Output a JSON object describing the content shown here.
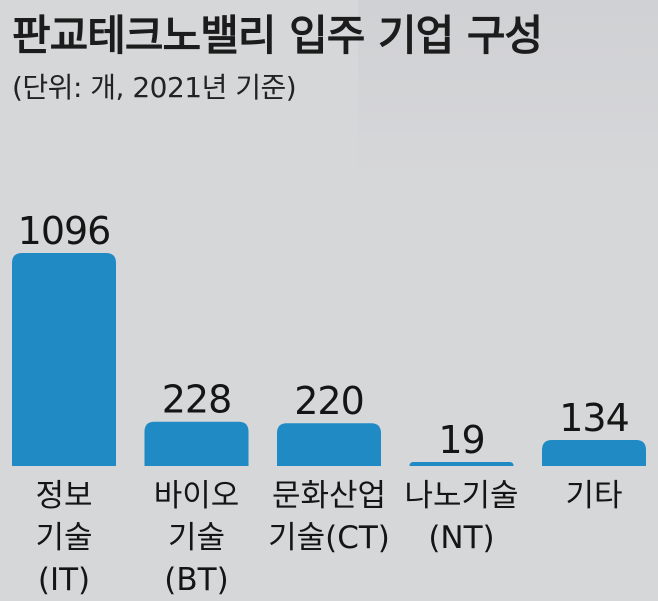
{
  "header": {
    "title": "판교테크노밸리 입주 기업 구성",
    "subtitle": "(단위: 개, 2021년 기준)"
  },
  "colors": {
    "bar": "#1f8ac4",
    "background": "#d6d7d9",
    "text": "#151515"
  },
  "chart_data": {
    "type": "bar",
    "title": "판교테크노밸리 입주 기업 구성",
    "subtitle": "(단위: 개, 2021년 기준)",
    "categories": [
      "정보 기술 (IT)",
      "바이오 기술 (BT)",
      "문화산업 기술(CT)",
      "나노기술 (NT)",
      "기타"
    ],
    "category_lines": [
      [
        "정보",
        "기술",
        "(IT)"
      ],
      [
        "바이오",
        "기술",
        "(BT)"
      ],
      [
        "문화산업",
        "기술(CT)"
      ],
      [
        "나노기술",
        "(NT)"
      ],
      [
        "기타"
      ]
    ],
    "values": [
      1096,
      228,
      220,
      19,
      134
    ],
    "value_labels": [
      "1096",
      "228",
      "220",
      "19",
      "134"
    ],
    "ylim": [
      0,
      1096
    ],
    "grid": false,
    "legend": "none"
  }
}
